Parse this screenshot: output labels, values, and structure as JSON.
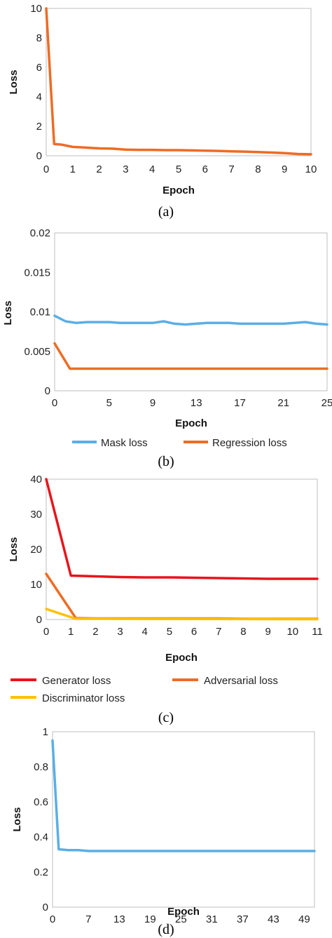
{
  "chart_data": [
    {
      "type": "line",
      "panel": "(a)",
      "xlabel": "Epoch",
      "ylabel": "Loss",
      "xlim": [
        0,
        10
      ],
      "ylim": [
        0,
        10
      ],
      "xticks": [
        0,
        1,
        2,
        3,
        4,
        5,
        6,
        7,
        8,
        9,
        10
      ],
      "yticks": [
        0,
        2,
        4,
        6,
        8,
        10
      ],
      "grid": false,
      "series": [
        {
          "color": "#ed6c24",
          "points": [
            [
              0,
              10
            ],
            [
              0.3,
              0.8
            ],
            [
              0.6,
              0.75
            ],
            [
              1,
              0.6
            ],
            [
              1.5,
              0.55
            ],
            [
              2,
              0.5
            ],
            [
              2.5,
              0.48
            ],
            [
              3,
              0.42
            ],
            [
              3.5,
              0.4
            ],
            [
              4,
              0.4
            ],
            [
              4.5,
              0.38
            ],
            [
              5,
              0.38
            ],
            [
              5.5,
              0.36
            ],
            [
              6,
              0.35
            ],
            [
              6.5,
              0.33
            ],
            [
              7,
              0.3
            ],
            [
              7.5,
              0.28
            ],
            [
              8,
              0.25
            ],
            [
              8.5,
              0.22
            ],
            [
              9,
              0.18
            ],
            [
              9.5,
              0.12
            ],
            [
              10,
              0.1
            ]
          ]
        }
      ]
    },
    {
      "type": "line",
      "panel": "(b)",
      "xlabel": "Epoch",
      "ylabel": "Loss",
      "xlim": [
        0,
        25
      ],
      "ylim": [
        0,
        0.02
      ],
      "xticks": [
        0,
        5,
        9,
        13,
        17,
        21,
        25
      ],
      "yticks": [
        0,
        0.005,
        0.01,
        0.015,
        0.02
      ],
      "ytick_labels": [
        "0",
        "0.005",
        "0.01",
        "0.015",
        "0.02"
      ],
      "grid": false,
      "legend": "bottom",
      "series": [
        {
          "name": "Mask loss",
          "color": "#5aafe6",
          "points": [
            [
              0,
              0.0095
            ],
            [
              1,
              0.0088
            ],
            [
              2,
              0.0086
            ],
            [
              3,
              0.0087
            ],
            [
              4,
              0.0087
            ],
            [
              5,
              0.0087
            ],
            [
              6,
              0.0086
            ],
            [
              7,
              0.0086
            ],
            [
              8,
              0.0086
            ],
            [
              9,
              0.0086
            ],
            [
              10,
              0.0088
            ],
            [
              11,
              0.0085
            ],
            [
              12,
              0.0084
            ],
            [
              13,
              0.0085
            ],
            [
              14,
              0.0086
            ],
            [
              15,
              0.0086
            ],
            [
              16,
              0.0086
            ],
            [
              17,
              0.0085
            ],
            [
              18,
              0.0085
            ],
            [
              19,
              0.0085
            ],
            [
              20,
              0.0085
            ],
            [
              21,
              0.0085
            ],
            [
              22,
              0.0086
            ],
            [
              23,
              0.0087
            ],
            [
              24,
              0.0085
            ],
            [
              25,
              0.0084
            ]
          ]
        },
        {
          "name": "Regression loss",
          "color": "#ed6c24",
          "points": [
            [
              0,
              0.006
            ],
            [
              1.4,
              0.0028
            ],
            [
              25,
              0.0028
            ]
          ]
        }
      ]
    },
    {
      "type": "line",
      "panel": "(c)",
      "xlabel": "Epoch",
      "ylabel": "Loss",
      "xlim": [
        0,
        11
      ],
      "ylim": [
        0,
        40
      ],
      "xticks": [
        0,
        1,
        2,
        3,
        4,
        5,
        6,
        7,
        8,
        9,
        10,
        11
      ],
      "yticks": [
        0,
        10,
        20,
        30,
        40
      ],
      "grid": false,
      "legend": "bottom",
      "series": [
        {
          "name": "Generator loss",
          "color": "#e8141c",
          "points": [
            [
              0,
              40
            ],
            [
              1,
              12.5
            ],
            [
              2,
              12.3
            ],
            [
              3,
              12.1
            ],
            [
              4,
              12
            ],
            [
              5,
              12
            ],
            [
              6,
              11.9
            ],
            [
              7,
              11.8
            ],
            [
              8,
              11.7
            ],
            [
              9,
              11.6
            ],
            [
              10,
              11.6
            ],
            [
              11,
              11.6
            ]
          ]
        },
        {
          "name": "Adversarial loss",
          "color": "#ed6c24",
          "points": [
            [
              0,
              13
            ],
            [
              1.2,
              0.4
            ],
            [
              2,
              0.3
            ],
            [
              7,
              0.3
            ],
            [
              8,
              0.2
            ],
            [
              11,
              0.2
            ]
          ]
        },
        {
          "name": "Discriminator loss",
          "color": "#ffc000",
          "points": [
            [
              0,
              3
            ],
            [
              1.2,
              0.2
            ],
            [
              11,
              0.1
            ]
          ]
        }
      ]
    },
    {
      "type": "line",
      "panel": "(d)",
      "xlabel": "Epoch",
      "ylabel": "Loss",
      "xlim": [
        0,
        51
      ],
      "ylim": [
        0,
        1
      ],
      "xticks": [
        0,
        7,
        13,
        19,
        25,
        31,
        37,
        43,
        49
      ],
      "yticks": [
        0,
        0.2,
        0.4,
        0.6,
        0.8,
        1
      ],
      "ytick_labels": [
        "0",
        "0.2",
        "0.4",
        "0.6",
        "0.8",
        "1"
      ],
      "grid": false,
      "series": [
        {
          "color": "#5aafe6",
          "points": [
            [
              0,
              0.95
            ],
            [
              1.2,
              0.33
            ],
            [
              3,
              0.325
            ],
            [
              5,
              0.325
            ],
            [
              7,
              0.32
            ],
            [
              51,
              0.32
            ]
          ]
        }
      ]
    }
  ]
}
